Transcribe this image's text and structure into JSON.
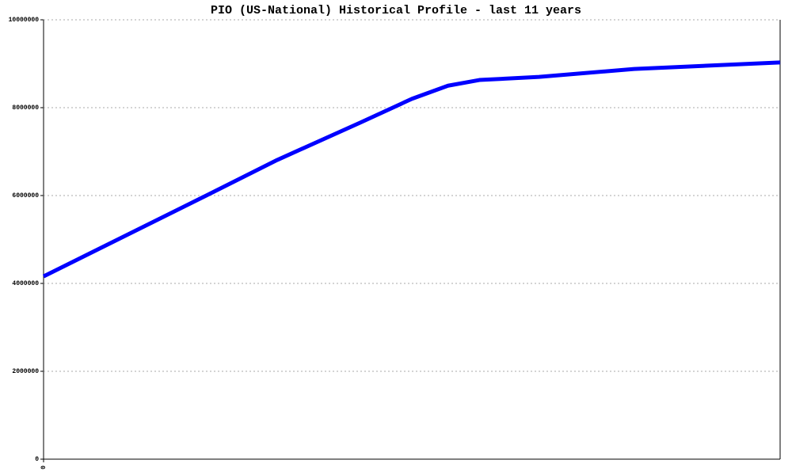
{
  "chart_data": {
    "type": "line",
    "title": "PIO (US-National) Historical Profile - last 11 years",
    "x": [
      0,
      2.43,
      3.49,
      4.73,
      5.5,
      6.04,
      6.51,
      7.4,
      8.82,
      11
    ],
    "series": [
      {
        "name": "PIO",
        "color": "#0000ff",
        "values": [
          4160000,
          6000000,
          6810000,
          7660000,
          8200000,
          8500000,
          8630000,
          8700000,
          8880000,
          9030000
        ]
      }
    ],
    "xlim": [
      0,
      11
    ],
    "xticks": [
      0
    ],
    "ylim": [
      0,
      10000000
    ],
    "yticks": [
      0,
      2000000,
      4000000,
      6000000,
      8000000,
      10000000
    ],
    "grid": true
  }
}
